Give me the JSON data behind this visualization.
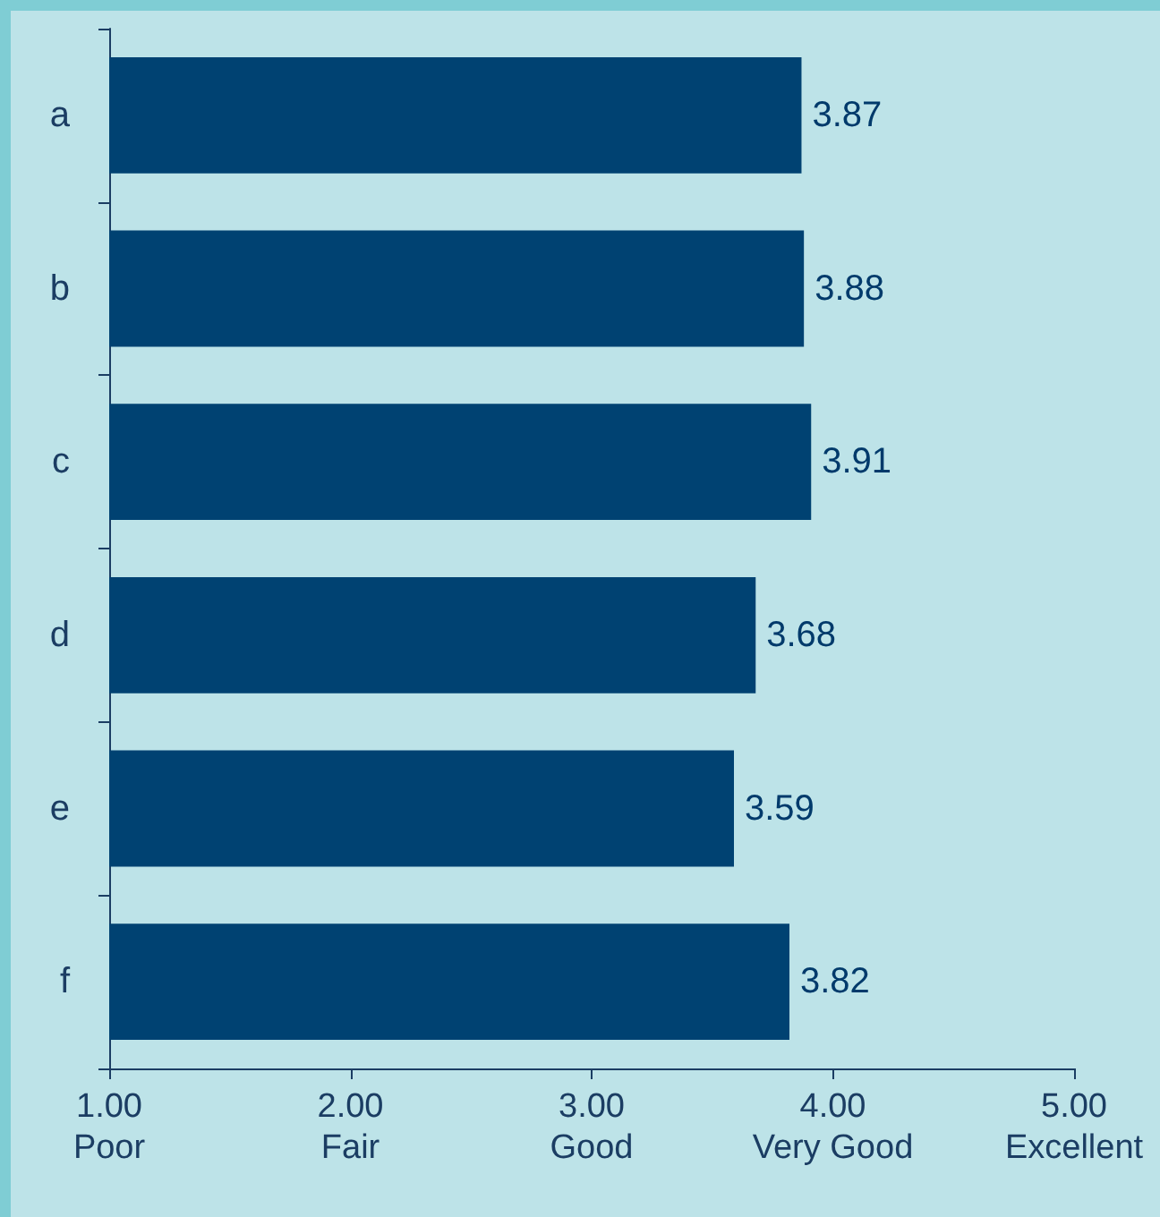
{
  "chart_data": {
    "type": "bar",
    "orientation": "horizontal",
    "categories": [
      "a",
      "b",
      "c",
      "d",
      "e",
      "f"
    ],
    "values": [
      3.87,
      3.88,
      3.91,
      3.68,
      3.59,
      3.82
    ],
    "color": "#004272",
    "data_labels": true,
    "xlim": [
      1,
      5
    ],
    "xticks": [
      {
        "value": 1,
        "label": "1.00\nPoor"
      },
      {
        "value": 2,
        "label": "2.00\nFair"
      },
      {
        "value": 3,
        "label": "3.00\nGood"
      },
      {
        "value": 4,
        "label": "4.00\nVery Good"
      },
      {
        "value": 5,
        "label": "5.00\nExcellent"
      }
    ],
    "grid": false
  }
}
